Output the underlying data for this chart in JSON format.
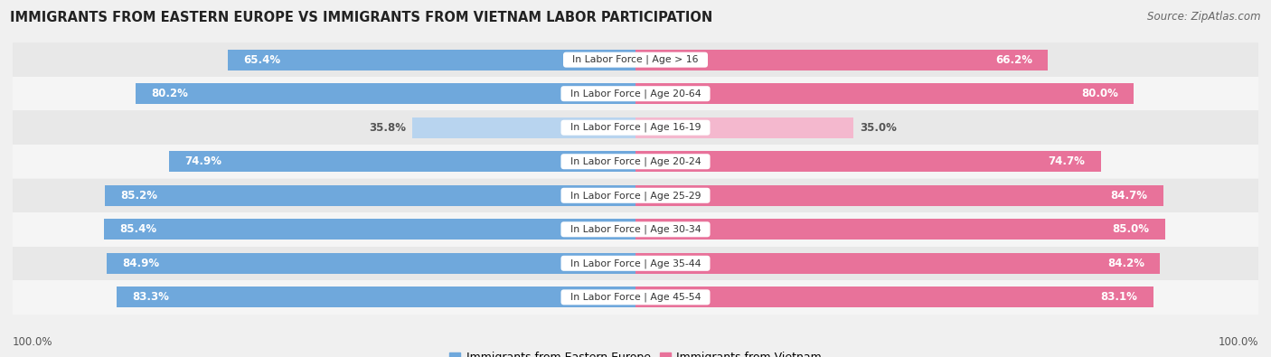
{
  "title": "IMMIGRANTS FROM EASTERN EUROPE VS IMMIGRANTS FROM VIETNAM LABOR PARTICIPATION",
  "source": "Source: ZipAtlas.com",
  "categories": [
    "In Labor Force | Age > 16",
    "In Labor Force | Age 20-64",
    "In Labor Force | Age 16-19",
    "In Labor Force | Age 20-24",
    "In Labor Force | Age 25-29",
    "In Labor Force | Age 30-34",
    "In Labor Force | Age 35-44",
    "In Labor Force | Age 45-54"
  ],
  "eastern_europe_values": [
    65.4,
    80.2,
    35.8,
    74.9,
    85.2,
    85.4,
    84.9,
    83.3
  ],
  "vietnam_values": [
    66.2,
    80.0,
    35.0,
    74.7,
    84.7,
    85.0,
    84.2,
    83.1
  ],
  "eastern_europe_color": "#6fa8dc",
  "vietnam_color": "#e8729a",
  "eastern_europe_color_light": "#b8d4ef",
  "vietnam_color_light": "#f4b8ce",
  "legend_eastern_europe": "Immigrants from Eastern Europe",
  "legend_vietnam": "Immigrants from Vietnam",
  "bar_height": 0.62,
  "background_color": "#f0f0f0",
  "max_value": 100.0,
  "label_fontsize": 8.5,
  "title_fontsize": 10.5,
  "source_fontsize": 8.5,
  "low_threshold": 50
}
